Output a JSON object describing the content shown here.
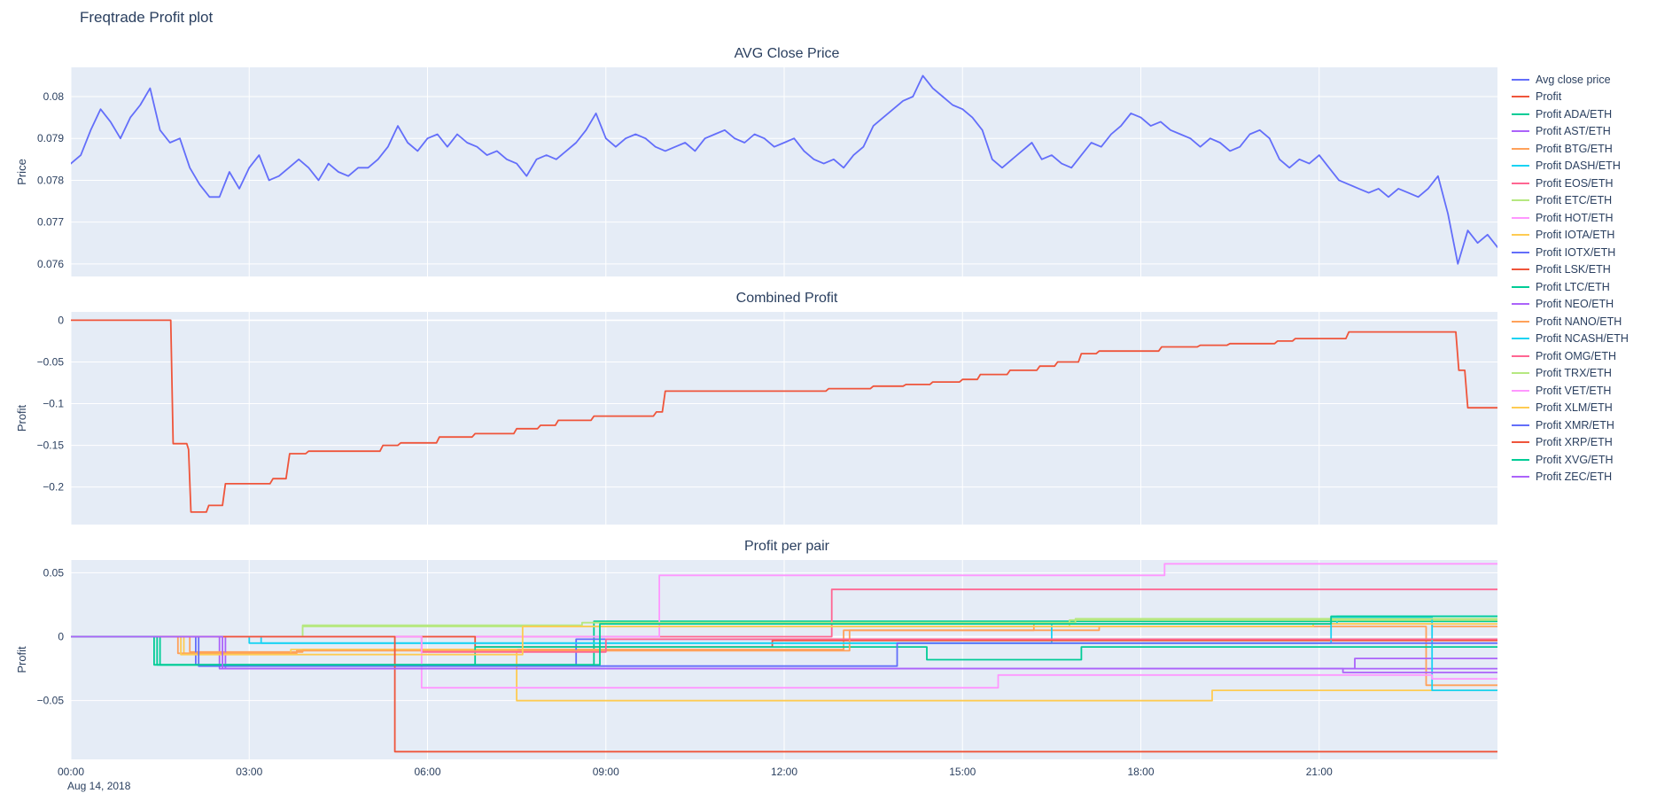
{
  "page": {
    "title": "Freqtrade Profit plot"
  },
  "colors": {
    "background": "#ffffff",
    "plot_bg": "#e5ecf6",
    "grid": "#ffffff",
    "text": "#2a3f5f",
    "accent_blue": "#636efa",
    "accent_red": "#EF553B"
  },
  "xaxis": {
    "ticks": [
      0,
      3,
      6,
      9,
      12,
      15,
      18,
      21
    ],
    "labels": [
      "00:00",
      "03:00",
      "06:00",
      "09:00",
      "12:00",
      "15:00",
      "18:00",
      "21:00"
    ],
    "date_label": "Aug 14, 2018"
  },
  "legend": {
    "items": [
      {
        "label": "Avg close price",
        "color": "#636efa"
      },
      {
        "label": "Profit",
        "color": "#EF553B"
      },
      {
        "label": "Profit ADA/ETH",
        "color": "#00cc96"
      },
      {
        "label": "Profit AST/ETH",
        "color": "#ab63fa"
      },
      {
        "label": "Profit BTG/ETH",
        "color": "#FFA15A"
      },
      {
        "label": "Profit DASH/ETH",
        "color": "#19d3f3"
      },
      {
        "label": "Profit EOS/ETH",
        "color": "#FF6692"
      },
      {
        "label": "Profit ETC/ETH",
        "color": "#B6E880"
      },
      {
        "label": "Profit HOT/ETH",
        "color": "#FF97FF"
      },
      {
        "label": "Profit IOTA/ETH",
        "color": "#FECB52"
      },
      {
        "label": "Profit IOTX/ETH",
        "color": "#636efa"
      },
      {
        "label": "Profit LSK/ETH",
        "color": "#EF553B"
      },
      {
        "label": "Profit LTC/ETH",
        "color": "#00cc96"
      },
      {
        "label": "Profit NEO/ETH",
        "color": "#ab63fa"
      },
      {
        "label": "Profit NANO/ETH",
        "color": "#FFA15A"
      },
      {
        "label": "Profit NCASH/ETH",
        "color": "#19d3f3"
      },
      {
        "label": "Profit OMG/ETH",
        "color": "#FF6692"
      },
      {
        "label": "Profit TRX/ETH",
        "color": "#B6E880"
      },
      {
        "label": "Profit VET/ETH",
        "color": "#FF97FF"
      },
      {
        "label": "Profit XLM/ETH",
        "color": "#FECB52"
      },
      {
        "label": "Profit XMR/ETH",
        "color": "#636efa"
      },
      {
        "label": "Profit XRP/ETH",
        "color": "#EF553B"
      },
      {
        "label": "Profit XVG/ETH",
        "color": "#00cc96"
      },
      {
        "label": "Profit ZEC/ETH",
        "color": "#ab63fa"
      }
    ]
  },
  "chart_data": [
    {
      "type": "line",
      "title": "AVG Close Price",
      "ylabel": "Price",
      "yticks": [
        0.076,
        0.077,
        0.078,
        0.079,
        0.08
      ],
      "ylim": [
        0.0757,
        0.0807
      ],
      "xlim": [
        0,
        24
      ],
      "x_labels": false,
      "series": [
        {
          "name": "Avg close price",
          "color": "#636efa",
          "x0": 0,
          "dx": 0.166667,
          "y": [
            0.0784,
            0.0786,
            0.0792,
            0.0797,
            0.0794,
            0.079,
            0.0795,
            0.0798,
            0.0802,
            0.0792,
            0.0789,
            0.079,
            0.0783,
            0.0779,
            0.0776,
            0.0776,
            0.0782,
            0.0778,
            0.0783,
            0.0786,
            0.078,
            0.0781,
            0.0783,
            0.0785,
            0.0783,
            0.078,
            0.0784,
            0.0782,
            0.0781,
            0.0783,
            0.0783,
            0.0785,
            0.0788,
            0.0793,
            0.0789,
            0.0787,
            0.079,
            0.0791,
            0.0788,
            0.0791,
            0.0789,
            0.0788,
            0.0786,
            0.0787,
            0.0785,
            0.0784,
            0.0781,
            0.0785,
            0.0786,
            0.0785,
            0.0787,
            0.0789,
            0.0792,
            0.0796,
            0.079,
            0.0788,
            0.079,
            0.0791,
            0.079,
            0.0788,
            0.0787,
            0.0788,
            0.0789,
            0.0787,
            0.079,
            0.0791,
            0.0792,
            0.079,
            0.0789,
            0.0791,
            0.079,
            0.0788,
            0.0789,
            0.079,
            0.0787,
            0.0785,
            0.0784,
            0.0785,
            0.0783,
            0.0786,
            0.0788,
            0.0793,
            0.0795,
            0.0797,
            0.0799,
            0.08,
            0.0805,
            0.0802,
            0.08,
            0.0798,
            0.0797,
            0.0795,
            0.0792,
            0.0785,
            0.0783,
            0.0785,
            0.0787,
            0.0789,
            0.0785,
            0.0786,
            0.0784,
            0.0783,
            0.0786,
            0.0789,
            0.0788,
            0.0791,
            0.0793,
            0.0796,
            0.0795,
            0.0793,
            0.0794,
            0.0792,
            0.0791,
            0.079,
            0.0788,
            0.079,
            0.0789,
            0.0787,
            0.0788,
            0.0791,
            0.0792,
            0.079,
            0.0785,
            0.0783,
            0.0785,
            0.0784,
            0.0786,
            0.0783,
            0.078,
            0.0779,
            0.0778,
            0.0777,
            0.0778,
            0.0776,
            0.0778,
            0.0777,
            0.0776,
            0.0778,
            0.0781,
            0.0772,
            0.076,
            0.0768,
            0.0765,
            0.0767,
            0.0764
          ]
        }
      ]
    },
    {
      "type": "line",
      "title": "Combined Profit",
      "ylabel": "Profit",
      "yticks": [
        0,
        -0.05,
        -0.1,
        -0.15,
        -0.2
      ],
      "ylim": [
        -0.245,
        0.01
      ],
      "xlim": [
        0,
        24
      ],
      "x_labels": false,
      "series": [
        {
          "name": "Profit",
          "color": "#EF553B",
          "x": [
            0,
            1.68,
            1.72,
            1.95,
            1.98,
            2.02,
            2.28,
            2.32,
            2.55,
            2.6,
            3.35,
            3.4,
            3.62,
            3.68,
            3.95,
            4.0,
            5.2,
            5.25,
            5.5,
            5.55,
            6.15,
            6.2,
            6.75,
            6.8,
            7.45,
            7.5,
            7.85,
            7.9,
            8.15,
            8.2,
            8.75,
            8.8,
            9.8,
            9.85,
            9.95,
            10.0,
            12.7,
            12.75,
            13.45,
            13.5,
            14.0,
            14.05,
            14.45,
            14.5,
            14.95,
            15.0,
            15.25,
            15.3,
            15.75,
            15.8,
            16.25,
            16.3,
            16.55,
            16.6,
            16.95,
            17.0,
            17.25,
            17.3,
            18.3,
            18.35,
            18.95,
            19.0,
            19.45,
            19.5,
            20.25,
            20.3,
            20.55,
            20.6,
            21.45,
            21.5,
            23.3,
            23.35,
            23.45,
            23.5,
            24
          ],
          "y": [
            0,
            0,
            -0.148,
            -0.148,
            -0.155,
            -0.23,
            -0.23,
            -0.222,
            -0.222,
            -0.196,
            -0.196,
            -0.19,
            -0.19,
            -0.16,
            -0.16,
            -0.157,
            -0.157,
            -0.15,
            -0.15,
            -0.147,
            -0.147,
            -0.14,
            -0.14,
            -0.136,
            -0.136,
            -0.13,
            -0.13,
            -0.126,
            -0.126,
            -0.12,
            -0.12,
            -0.115,
            -0.115,
            -0.11,
            -0.11,
            -0.085,
            -0.085,
            -0.082,
            -0.082,
            -0.079,
            -0.079,
            -0.077,
            -0.077,
            -0.074,
            -0.074,
            -0.071,
            -0.071,
            -0.065,
            -0.065,
            -0.06,
            -0.06,
            -0.055,
            -0.055,
            -0.05,
            -0.05,
            -0.04,
            -0.04,
            -0.037,
            -0.037,
            -0.032,
            -0.032,
            -0.03,
            -0.03,
            -0.028,
            -0.028,
            -0.025,
            -0.025,
            -0.022,
            -0.022,
            -0.014,
            -0.014,
            -0.06,
            -0.06,
            -0.105,
            -0.105
          ]
        }
      ]
    },
    {
      "type": "line",
      "title": "Profit per pair",
      "ylabel": "Profit",
      "yticks": [
        0.05,
        0,
        -0.05
      ],
      "ylim": [
        -0.096,
        0.06
      ],
      "xlim": [
        0,
        24
      ],
      "x_labels": true,
      "series": [
        {
          "name": "Profit ADA/ETH",
          "color": "#00cc96",
          "x": [
            0,
            1.5,
            1.5,
            8.8,
            8.8,
            24
          ],
          "y": [
            0,
            0,
            -0.022,
            -0.022,
            0.012,
            0.012
          ]
        },
        {
          "name": "Profit AST/ETH",
          "color": "#ab63fa",
          "x": [
            0,
            2.5,
            2.5,
            24
          ],
          "y": [
            0,
            0,
            -0.025,
            -0.025
          ]
        },
        {
          "name": "Profit BTG/ETH",
          "color": "#FFA15A",
          "x": [
            0,
            2.0,
            2.0,
            3.9,
            3.9,
            13.0,
            13.0,
            17.3,
            17.3,
            22.8,
            22.8,
            24
          ],
          "y": [
            0,
            0,
            -0.012,
            -0.012,
            -0.01,
            -0.01,
            0.005,
            0.005,
            0.008,
            0.008,
            -0.038,
            -0.038
          ]
        },
        {
          "name": "Profit DASH/ETH",
          "color": "#19d3f3",
          "x": [
            0,
            3.0,
            3.0,
            16.5,
            16.5,
            21.3,
            21.3,
            24
          ],
          "y": [
            0,
            0,
            -0.005,
            -0.005,
            0.01,
            0.01,
            0.016,
            0.016
          ]
        },
        {
          "name": "Profit EOS/ETH",
          "color": "#FF6692",
          "x": [
            0,
            12.8,
            12.8,
            24
          ],
          "y": [
            0,
            0,
            0.037,
            0.037
          ]
        },
        {
          "name": "Profit ETC/ETH",
          "color": "#B6E880",
          "x": [
            0,
            3.9,
            3.9,
            16.8,
            16.8,
            24
          ],
          "y": [
            0,
            0,
            0.008,
            0.008,
            0.013,
            0.013
          ]
        },
        {
          "name": "Profit HOT/ETH",
          "color": "#FF97FF",
          "x": [
            0,
            9.9,
            9.9,
            18.4,
            18.4,
            24
          ],
          "y": [
            0,
            0,
            0.048,
            0.048,
            0.057,
            0.057
          ]
        },
        {
          "name": "Profit IOTA/ETH",
          "color": "#FECB52",
          "x": [
            0,
            1.9,
            1.9,
            3.7,
            3.7,
            7.5,
            7.5,
            19.2,
            19.2,
            24
          ],
          "y": [
            0,
            0,
            -0.013,
            -0.013,
            -0.01,
            -0.01,
            -0.05,
            -0.05,
            -0.042,
            -0.042
          ]
        },
        {
          "name": "Profit IOTX/ETH",
          "color": "#636efa",
          "x": [
            0,
            2.1,
            2.1,
            8.5,
            8.5,
            24
          ],
          "y": [
            0,
            0,
            -0.022,
            -0.022,
            -0.002,
            -0.002
          ]
        },
        {
          "name": "Profit LSK/ETH",
          "color": "#EF553B",
          "x": [
            0,
            6.8,
            6.8,
            11.8,
            11.8,
            24
          ],
          "y": [
            0,
            0,
            -0.008,
            -0.008,
            -0.003,
            -0.003
          ]
        },
        {
          "name": "Profit LTC/ETH",
          "color": "#00cc96",
          "x": [
            0,
            1.4,
            1.4,
            6.8,
            6.8,
            14.4,
            14.4,
            17.0,
            17.0,
            24
          ],
          "y": [
            0,
            0,
            -0.022,
            -0.022,
            -0.008,
            -0.008,
            -0.018,
            -0.018,
            -0.008,
            -0.008
          ]
        },
        {
          "name": "Profit NEO/ETH",
          "color": "#ab63fa",
          "x": [
            0,
            2.6,
            2.6,
            21.6,
            21.6,
            24
          ],
          "y": [
            0,
            0,
            -0.025,
            -0.025,
            -0.017,
            -0.017
          ]
        },
        {
          "name": "Profit NANO/ETH",
          "color": "#FFA15A",
          "x": [
            0,
            1.8,
            1.8,
            3.8,
            3.8,
            13.1,
            13.1,
            16.2,
            16.2,
            22.9,
            22.9,
            24
          ],
          "y": [
            0,
            0,
            -0.013,
            -0.013,
            -0.011,
            -0.011,
            0.005,
            0.005,
            0.01,
            0.01,
            0.008,
            0.008
          ]
        },
        {
          "name": "Profit NCASH/ETH",
          "color": "#19d3f3",
          "x": [
            0,
            3.2,
            3.2,
            21.2,
            21.2,
            22.9,
            22.9,
            24
          ],
          "y": [
            0,
            0,
            -0.005,
            -0.005,
            0.015,
            0.015,
            -0.042,
            -0.042
          ]
        },
        {
          "name": "Profit OMG/ETH",
          "color": "#FF6692",
          "x": [
            0,
            5.9,
            5.9,
            9.0,
            9.0,
            24
          ],
          "y": [
            0,
            0,
            -0.012,
            -0.012,
            -0.002,
            -0.002
          ]
        },
        {
          "name": "Profit TRX/ETH",
          "color": "#B6E880",
          "x": [
            0,
            3.9,
            3.9,
            8.6,
            8.6,
            16.9,
            16.9,
            24
          ],
          "y": [
            0,
            0,
            0.009,
            0.009,
            0.011,
            0.011,
            0.014,
            0.014
          ]
        },
        {
          "name": "Profit VET/ETH",
          "color": "#FF97FF",
          "x": [
            0,
            5.9,
            5.9,
            15.6,
            15.6,
            22.9,
            22.9,
            24
          ],
          "y": [
            0,
            0,
            -0.04,
            -0.04,
            -0.03,
            -0.03,
            -0.033,
            -0.033
          ]
        },
        {
          "name": "Profit XLM/ETH",
          "color": "#FECB52",
          "x": [
            0,
            1.85,
            1.85,
            7.6,
            7.6,
            20.9,
            20.9,
            24
          ],
          "y": [
            0,
            0,
            -0.014,
            -0.014,
            0.008,
            0.008,
            0.01,
            0.01
          ]
        },
        {
          "name": "Profit XMR/ETH",
          "color": "#636efa",
          "x": [
            0,
            2.15,
            2.15,
            13.9,
            13.9,
            24
          ],
          "y": [
            0,
            0,
            -0.023,
            -0.023,
            -0.005,
            -0.005
          ]
        },
        {
          "name": "Profit XRP/ETH",
          "color": "#EF553B",
          "x": [
            0,
            5.45,
            5.45,
            24
          ],
          "y": [
            0,
            0,
            -0.09,
            -0.09
          ]
        },
        {
          "name": "Profit XVG/ETH",
          "color": "#00cc96",
          "x": [
            0,
            1.45,
            1.45,
            8.9,
            8.9,
            21.2,
            21.2,
            24
          ],
          "y": [
            0,
            0,
            -0.022,
            -0.022,
            0.01,
            0.01,
            0.016,
            0.016
          ]
        },
        {
          "name": "Profit ZEC/ETH",
          "color": "#ab63fa",
          "x": [
            0,
            2.55,
            2.55,
            21.4,
            21.4,
            24
          ],
          "y": [
            0,
            0,
            -0.025,
            -0.025,
            -0.028,
            -0.028
          ]
        }
      ]
    }
  ]
}
